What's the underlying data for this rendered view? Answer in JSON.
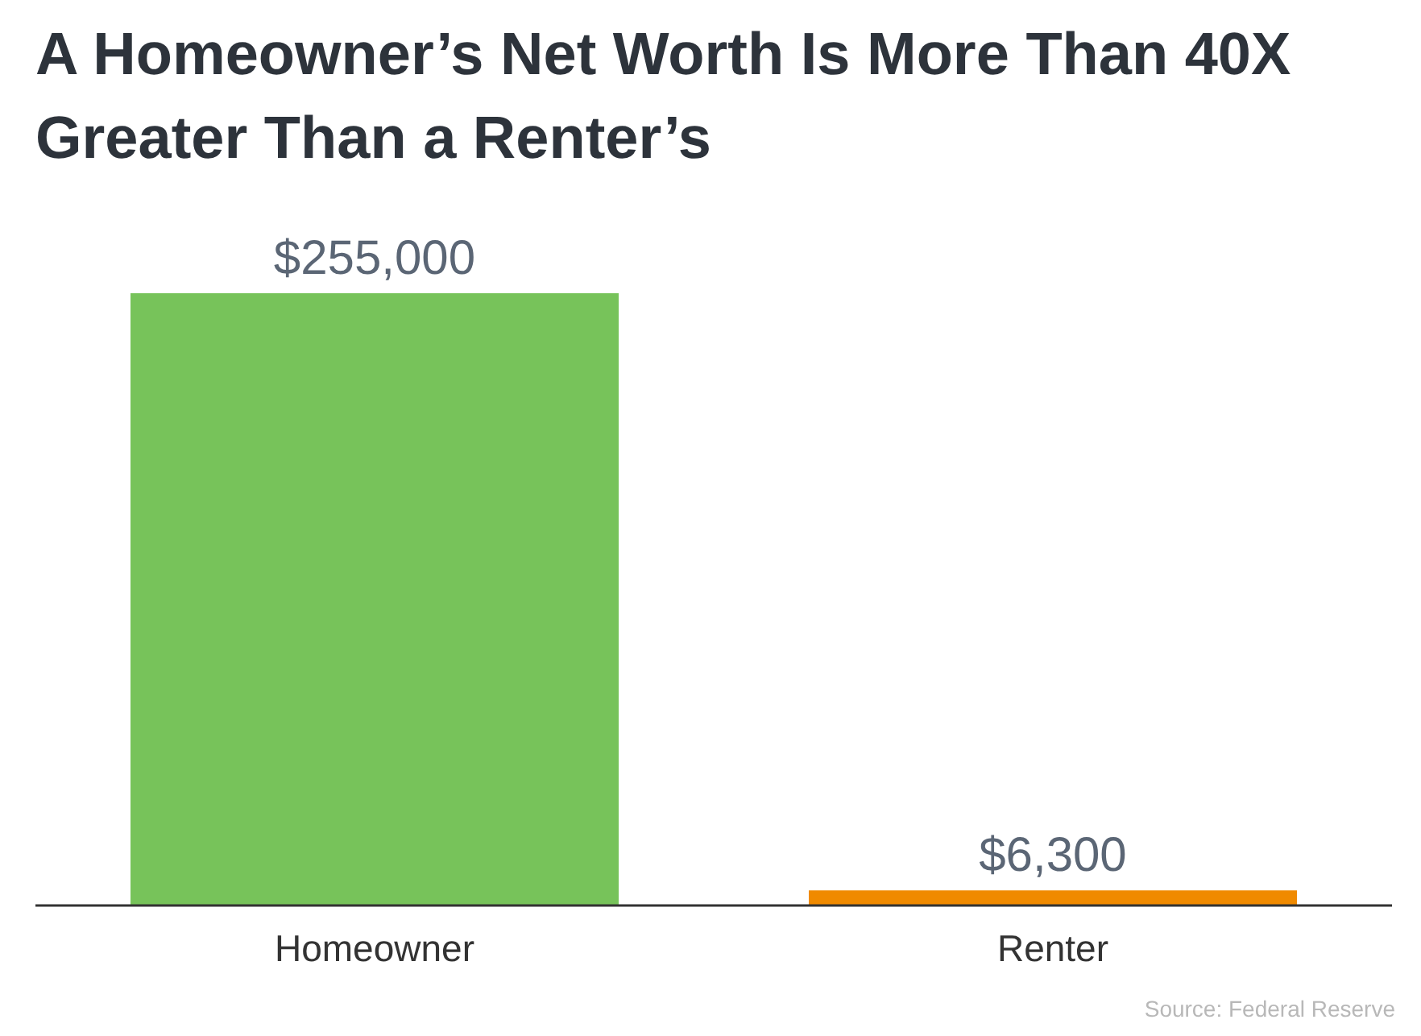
{
  "chart_data": {
    "type": "bar",
    "title": "A Homeowner’s Net Worth Is More Than 40X Greater Than a Renter’s",
    "categories": [
      "Homeowner",
      "Renter"
    ],
    "values": [
      255000,
      6300
    ],
    "colors": [
      "#77c35a",
      "#f08a00"
    ],
    "value_labels": [
      "$255,000",
      "$6,300"
    ],
    "annotations": [
      "Source: Federal Reserve"
    ]
  }
}
